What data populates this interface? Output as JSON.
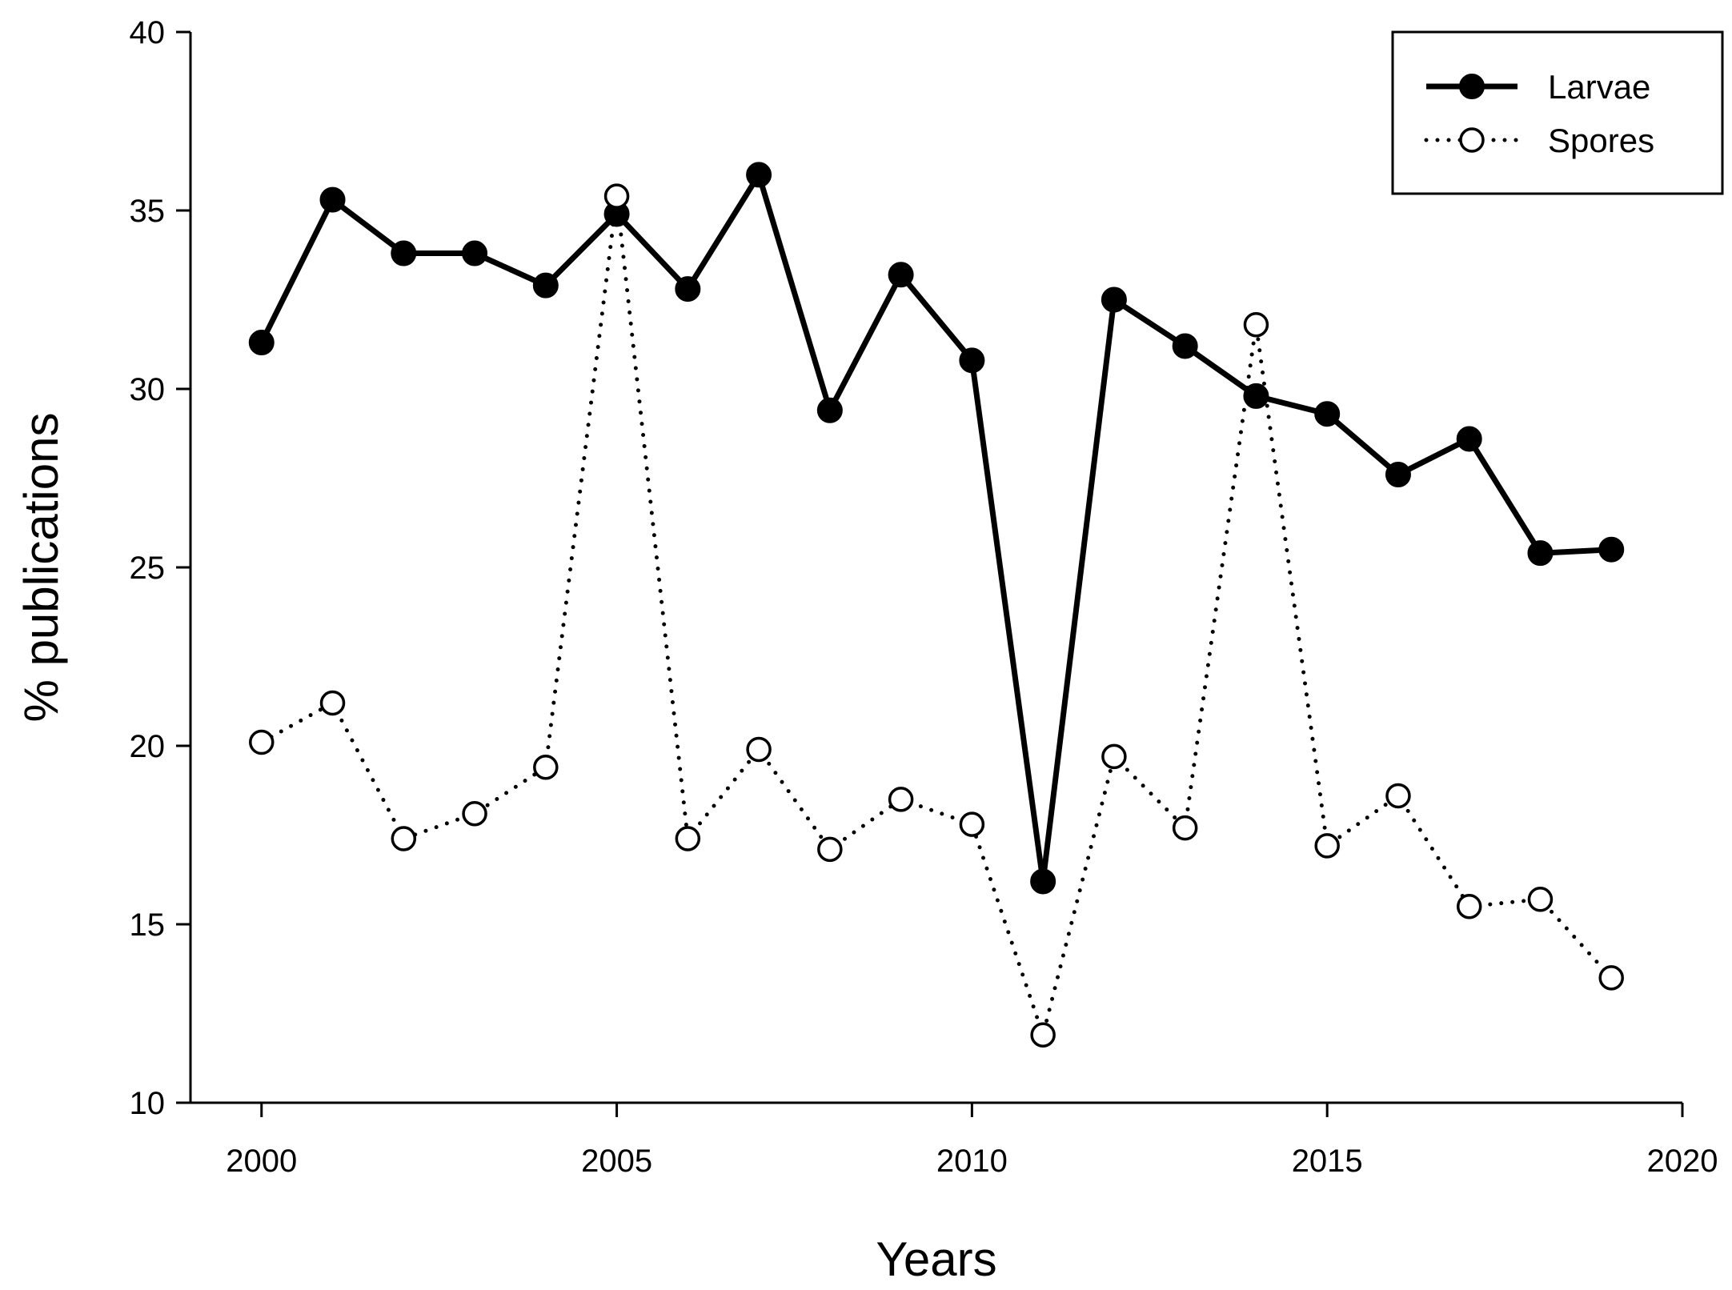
{
  "chart_data": {
    "type": "line",
    "xlabel": "Years",
    "ylabel": "% publications",
    "xlim": [
      1999,
      2020
    ],
    "ylim": [
      10,
      40
    ],
    "xticks": [
      2000,
      2005,
      2010,
      2015,
      2020
    ],
    "yticks": [
      10,
      15,
      20,
      25,
      30,
      35,
      40
    ],
    "x": [
      2000,
      2001,
      2002,
      2003,
      2004,
      2005,
      2006,
      2007,
      2008,
      2009,
      2010,
      2011,
      2012,
      2013,
      2014,
      2015,
      2016,
      2017,
      2018,
      2019
    ],
    "series": [
      {
        "name": "Larvae",
        "style": "solid",
        "marker": "filled-circle",
        "color": "#000000",
        "values": [
          31.3,
          35.3,
          33.8,
          33.8,
          32.9,
          34.9,
          32.8,
          36.0,
          29.4,
          33.2,
          30.8,
          16.2,
          32.5,
          31.2,
          29.8,
          29.3,
          27.6,
          28.6,
          25.4,
          25.5
        ]
      },
      {
        "name": "Spores",
        "style": "dotted",
        "marker": "open-circle",
        "color": "#000000",
        "values": [
          20.1,
          21.2,
          17.4,
          18.1,
          19.4,
          35.4,
          17.4,
          19.9,
          17.1,
          18.5,
          17.8,
          11.9,
          19.7,
          17.7,
          31.8,
          17.2,
          18.6,
          15.5,
          15.7,
          13.5
        ]
      }
    ],
    "legend_position": "top-right",
    "grid": false
  }
}
